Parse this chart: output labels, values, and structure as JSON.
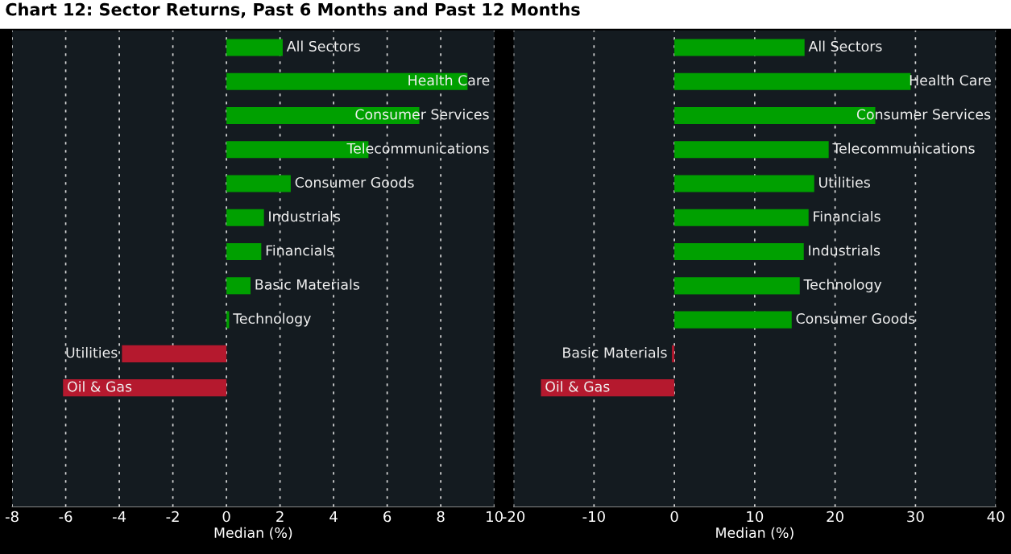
{
  "chart_data": [
    {
      "type": "bar",
      "orientation": "horizontal",
      "title": "Chart 12: Sector Returns, Past 6 Months and Past 12 Months",
      "categories": [
        "All Sectors",
        "Health Care",
        "Consumer Services",
        "Telecommunications",
        "Consumer Goods",
        "Industrials",
        "Financials",
        "Basic Materials",
        "Technology",
        "Utilities",
        "Oil & Gas",
        null,
        null,
        null
      ],
      "values": [
        2.1,
        9.0,
        7.2,
        5.3,
        2.4,
        1.4,
        1.3,
        0.9,
        0.1,
        -3.9,
        -6.1,
        null,
        null,
        null
      ],
      "colors": [
        "#00a000",
        "#00a000",
        "#00a000",
        "#00a000",
        "#00a000",
        "#00a000",
        "#00a000",
        "#00a000",
        "#00a000",
        "#b5192e",
        "#b5192e",
        null,
        null,
        null
      ],
      "xlim": [
        -8,
        10
      ],
      "xticks": [
        -8,
        -6,
        -4,
        -2,
        0,
        2,
        4,
        6,
        8,
        10
      ],
      "xlabel": "Median (%)",
      "grid": "x",
      "tick_labels": "x"
    },
    {
      "type": "bar",
      "orientation": "horizontal",
      "categories": [
        "All Sectors",
        "Health Care",
        "Consumer Services",
        "Telecommunications",
        "Utilities",
        "Financials",
        "Industrials",
        "Technology",
        "Consumer Goods",
        "Basic Materials",
        "Oil & Gas",
        null,
        null,
        null
      ],
      "values": [
        16.2,
        29.4,
        25.0,
        19.2,
        17.4,
        16.7,
        16.1,
        15.6,
        14.6,
        -0.3,
        -16.6,
        null,
        null,
        null
      ],
      "colors": [
        "#00a000",
        "#00a000",
        "#00a000",
        "#00a000",
        "#00a000",
        "#00a000",
        "#00a000",
        "#00a000",
        "#00a000",
        "#b5192e",
        "#b5192e",
        null,
        null,
        null
      ],
      "xlim": [
        -20,
        40
      ],
      "xticks": [
        -20,
        -10,
        0,
        10,
        20,
        30,
        40
      ],
      "xlabel": "Median (%)",
      "grid": "x",
      "tick_labels": "x"
    }
  ]
}
